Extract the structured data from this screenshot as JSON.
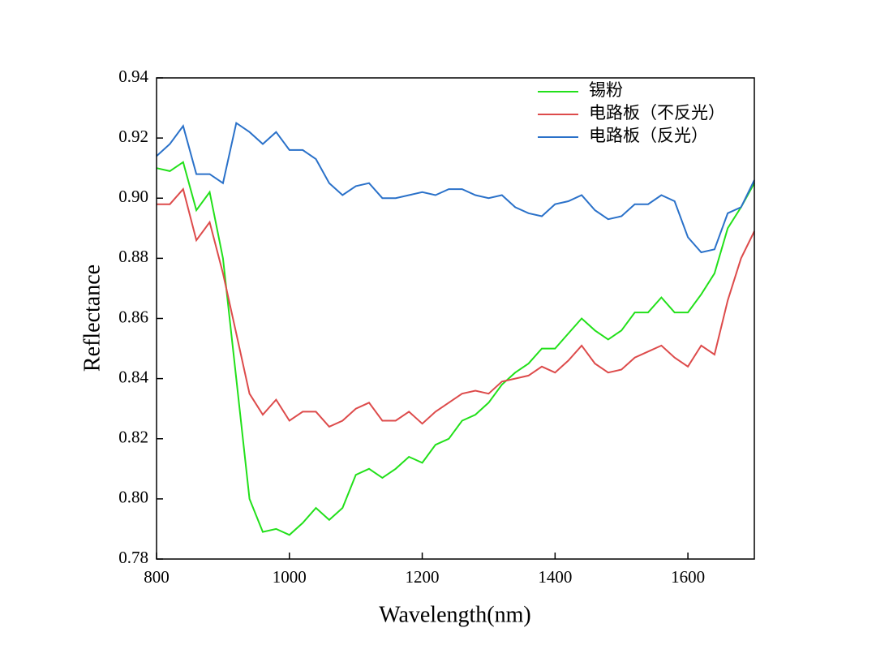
{
  "chart_data": {
    "type": "line",
    "xlabel": "Wavelength(nm)",
    "ylabel": "Reflectance",
    "xlim": [
      800,
      1700
    ],
    "xticks": [
      800,
      1000,
      1200,
      1400,
      1600
    ],
    "ylim": [
      0.78,
      0.94
    ],
    "yticks": [
      0.78,
      {
        "value": 0.8,
        "label": "0.80"
      },
      0.82,
      0.84,
      0.86,
      0.88,
      {
        "value": 0.9,
        "label": "0.90"
      },
      0.92,
      0.94
    ],
    "legend": "upper right",
    "x": [
      800,
      820,
      840,
      860,
      880,
      900,
      920,
      940,
      960,
      980,
      1000,
      1020,
      1040,
      1060,
      1080,
      1100,
      1120,
      1140,
      1160,
      1180,
      1200,
      1220,
      1240,
      1260,
      1280,
      1300,
      1320,
      1340,
      1360,
      1380,
      1400,
      1420,
      1440,
      1460,
      1480,
      1500,
      1520,
      1540,
      1560,
      1580,
      1600,
      1620,
      1640,
      1660,
      1680,
      1700
    ],
    "series": [
      {
        "name": "锡粉",
        "color": "#22e01a",
        "values": [
          0.91,
          0.909,
          0.912,
          0.896,
          0.902,
          0.88,
          0.84,
          0.8,
          0.789,
          0.79,
          0.788,
          0.792,
          0.797,
          0.793,
          0.797,
          0.808,
          0.81,
          0.807,
          0.81,
          0.814,
          0.812,
          0.818,
          0.82,
          0.826,
          0.828,
          0.832,
          0.838,
          0.842,
          0.845,
          0.85,
          0.85,
          0.855,
          0.86,
          0.856,
          0.853,
          0.856,
          0.862,
          0.862,
          0.867,
          0.862,
          0.862,
          0.868,
          0.875,
          0.89,
          0.897,
          0.905
        ]
      },
      {
        "name": "电路板（不反光）",
        "color": "#dd4b4b",
        "values": [
          0.898,
          0.898,
          0.903,
          0.886,
          0.892,
          0.875,
          0.855,
          0.835,
          0.828,
          0.833,
          0.826,
          0.829,
          0.829,
          0.824,
          0.826,
          0.83,
          0.832,
          0.826,
          0.826,
          0.829,
          0.825,
          0.829,
          0.832,
          0.835,
          0.836,
          0.835,
          0.839,
          0.84,
          0.841,
          0.844,
          0.842,
          0.846,
          0.851,
          0.845,
          0.842,
          0.843,
          0.847,
          0.849,
          0.851,
          0.847,
          0.844,
          0.851,
          0.848,
          0.866,
          0.88,
          0.889
        ]
      },
      {
        "name": "电路板（反光）",
        "color": "#2a71c9",
        "values": [
          0.914,
          0.918,
          0.924,
          0.908,
          0.908,
          0.905,
          0.925,
          0.922,
          0.918,
          0.922,
          0.916,
          0.916,
          0.913,
          0.905,
          0.901,
          0.904,
          0.905,
          0.9,
          0.9,
          0.901,
          0.902,
          0.901,
          0.903,
          0.903,
          0.901,
          0.9,
          0.901,
          0.897,
          0.895,
          0.894,
          0.898,
          0.899,
          0.901,
          0.896,
          0.893,
          0.894,
          0.898,
          0.898,
          0.901,
          0.899,
          0.887,
          0.882,
          0.883,
          0.895,
          0.897,
          0.906
        ]
      }
    ]
  }
}
